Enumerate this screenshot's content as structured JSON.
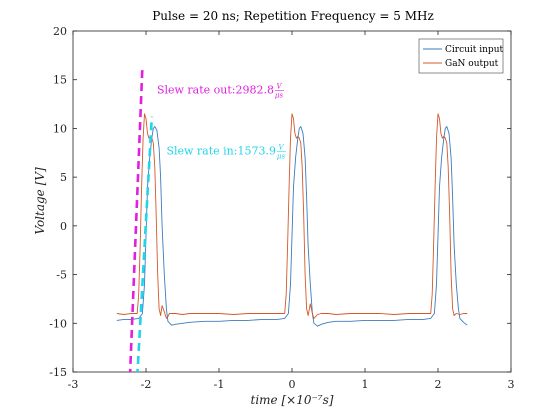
{
  "chart_data": {
    "type": "line",
    "title": "Pulse = 20 ns; Repetition Frequency = 5 MHz",
    "xlabel": "time [×10⁻⁷s]",
    "ylabel": "Voltage [V]",
    "xlim": [
      -3,
      3
    ],
    "ylim": [
      -15,
      20
    ],
    "xticks": [
      -3,
      -2,
      -1,
      0,
      1,
      2,
      3
    ],
    "yticks": [
      -15,
      -10,
      -5,
      0,
      5,
      10,
      15,
      20
    ],
    "grid": false,
    "legend_position": "top-right",
    "series": [
      {
        "name": "Circuit input",
        "color": "#3b7bbf",
        "x": [
          -2.4,
          -2.3,
          -2.2,
          -2.1,
          -2.05,
          -2.02,
          -2.0,
          -1.98,
          -1.95,
          -1.92,
          -1.9,
          -1.88,
          -1.85,
          -1.82,
          -1.8,
          -1.78,
          -1.75,
          -1.72,
          -1.7,
          -1.65,
          -1.6,
          -1.5,
          -1.4,
          -1.2,
          -1.0,
          -0.8,
          -0.6,
          -0.4,
          -0.2,
          -0.1,
          -0.05,
          -0.02,
          0.0,
          0.02,
          0.05,
          0.08,
          0.1,
          0.12,
          0.15,
          0.18,
          0.2,
          0.22,
          0.25,
          0.28,
          0.3,
          0.35,
          0.4,
          0.5,
          0.6,
          0.8,
          1.0,
          1.2,
          1.4,
          1.6,
          1.8,
          1.9,
          1.95,
          1.98,
          2.0,
          2.02,
          2.05,
          2.08,
          2.1,
          2.12,
          2.15,
          2.18,
          2.2,
          2.22,
          2.25,
          2.28,
          2.3,
          2.35,
          2.4
        ],
        "y": [
          -9.7,
          -9.6,
          -9.6,
          -9.5,
          -9.0,
          -6.0,
          -1.0,
          4.0,
          7.0,
          9.0,
          10.0,
          10.2,
          9.8,
          8.0,
          5.0,
          0.0,
          -5.0,
          -8.5,
          -9.8,
          -10.2,
          -10.1,
          -10.0,
          -9.9,
          -9.8,
          -9.8,
          -9.7,
          -9.7,
          -9.6,
          -9.6,
          -9.5,
          -9.0,
          -6.0,
          -1.0,
          4.0,
          7.0,
          9.0,
          10.0,
          10.2,
          9.5,
          7.0,
          3.0,
          -2.0,
          -6.0,
          -9.0,
          -10.0,
          -10.3,
          -10.1,
          -9.9,
          -9.8,
          -9.8,
          -9.7,
          -9.7,
          -9.7,
          -9.6,
          -9.6,
          -9.5,
          -9.0,
          -6.0,
          -1.0,
          4.0,
          7.0,
          9.0,
          10.0,
          10.2,
          9.5,
          7.0,
          3.0,
          -2.0,
          -6.0,
          -8.5,
          -9.5,
          -9.9,
          -10.2
        ]
      },
      {
        "name": "GaN output",
        "color": "#d4582a",
        "x": [
          -2.4,
          -2.3,
          -2.2,
          -2.12,
          -2.1,
          -2.08,
          -2.06,
          -2.04,
          -2.02,
          -2.0,
          -1.98,
          -1.96,
          -1.94,
          -1.92,
          -1.9,
          -1.88,
          -1.86,
          -1.84,
          -1.82,
          -1.8,
          -1.78,
          -1.75,
          -1.72,
          -1.7,
          -1.68,
          -1.65,
          -1.6,
          -1.5,
          -1.4,
          -1.2,
          -1.0,
          -0.8,
          -0.6,
          -0.4,
          -0.2,
          -0.1,
          -0.08,
          -0.06,
          -0.04,
          -0.02,
          0.0,
          0.02,
          0.04,
          0.06,
          0.08,
          0.1,
          0.12,
          0.14,
          0.16,
          0.18,
          0.2,
          0.22,
          0.25,
          0.28,
          0.3,
          0.35,
          0.4,
          0.5,
          0.6,
          0.8,
          1.0,
          1.2,
          1.4,
          1.6,
          1.8,
          1.9,
          1.92,
          1.94,
          1.96,
          1.98,
          2.0,
          2.02,
          2.04,
          2.06,
          2.08,
          2.1,
          2.12,
          2.14,
          2.16,
          2.18,
          2.2,
          2.22,
          2.25,
          2.3,
          2.35,
          2.4
        ],
        "y": [
          -9.0,
          -9.1,
          -9.0,
          -9.0,
          -7.0,
          -2.0,
          4.0,
          9.0,
          11.5,
          11.0,
          9.5,
          9.0,
          9.2,
          9.0,
          8.5,
          6.0,
          1.0,
          -5.0,
          -8.5,
          -9.2,
          -8.2,
          -8.8,
          -9.5,
          -9.3,
          -9.0,
          -9.0,
          -9.0,
          -9.1,
          -9.0,
          -9.0,
          -9.0,
          -9.1,
          -9.0,
          -9.0,
          -9.0,
          -9.0,
          -7.0,
          -2.0,
          4.0,
          9.0,
          11.5,
          11.0,
          9.5,
          9.0,
          9.2,
          9.0,
          8.5,
          6.0,
          1.0,
          -5.0,
          -8.5,
          -9.2,
          -8.0,
          -9.0,
          -9.5,
          -9.1,
          -9.0,
          -9.0,
          -9.1,
          -9.0,
          -9.0,
          -9.0,
          -9.1,
          -9.0,
          -9.0,
          -9.0,
          -7.0,
          -2.0,
          4.0,
          9.0,
          11.5,
          11.0,
          9.5,
          9.0,
          9.2,
          9.0,
          8.5,
          6.0,
          1.0,
          -5.0,
          -8.5,
          -9.2,
          -9.0,
          -9.1,
          -9.0,
          -9.0
        ]
      }
    ],
    "annotations": [
      {
        "label": "Slew rate out:",
        "value": "2982.8",
        "unit_num": "V",
        "unit_den": "μs",
        "color": "#e020e0",
        "line": {
          "x1": -2.22,
          "y1": -15.5,
          "x2": -2.05,
          "y2": 16.2
        },
        "text_pos": {
          "x": -1.85,
          "y": 13.6
        }
      },
      {
        "label": "Slew rate in:",
        "value": "1573.9",
        "unit_num": "V",
        "unit_den": "μs",
        "color": "#22d4e8",
        "line": {
          "x1": -2.12,
          "y1": -15.5,
          "x2": -1.92,
          "y2": 11.2
        },
        "text_pos": {
          "x": -1.72,
          "y": 7.3
        }
      }
    ]
  }
}
